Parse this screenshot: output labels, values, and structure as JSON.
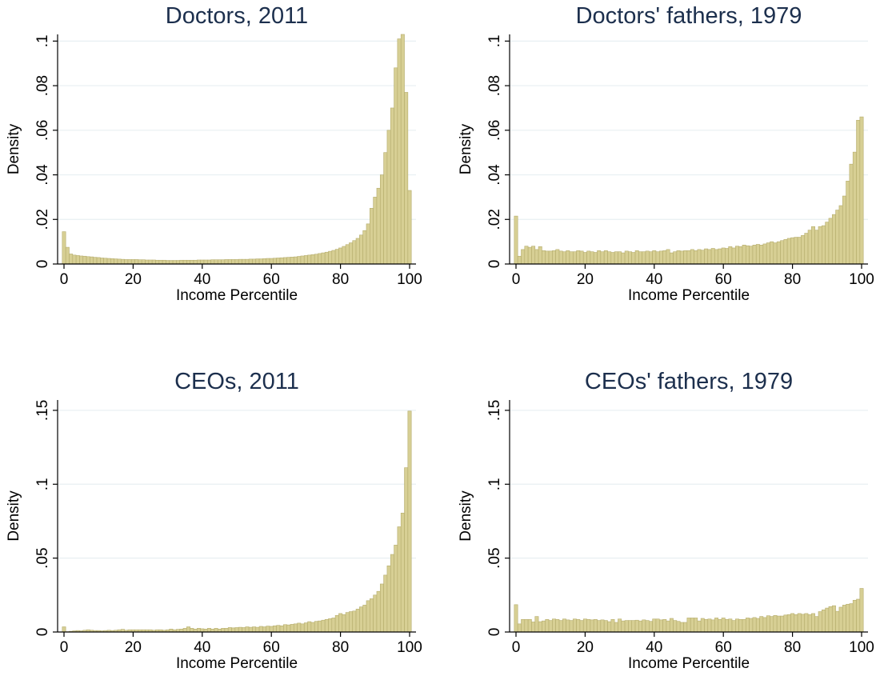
{
  "style": {
    "bar_fill": "#d7cf94",
    "bar_stroke": "#b5ac6c",
    "grid": "#e8eff2",
    "title_color": "#1c2f4d"
  },
  "chart_data": [
    {
      "type": "bar",
      "title": "Doctors, 2011",
      "xlabel": "Income Percentile",
      "ylabel": "Density",
      "xlim": [
        0,
        100
      ],
      "ylim": [
        0,
        0.103
      ],
      "xticks": [
        0,
        20,
        40,
        60,
        80,
        100
      ],
      "xtick_labels": [
        "0",
        "20",
        "40",
        "60",
        "80",
        "100"
      ],
      "yticks": [
        0,
        0.02,
        0.04,
        0.06,
        0.08,
        0.1
      ],
      "ytick_labels": [
        "0",
        ".02",
        ".04",
        ".06",
        ".08",
        ".1"
      ],
      "grid": true,
      "values": [
        0.0145,
        0.0075,
        0.0045,
        0.004,
        0.0038,
        0.0036,
        0.0035,
        0.0033,
        0.0032,
        0.003,
        0.0029,
        0.0027,
        0.0026,
        0.0025,
        0.0024,
        0.0023,
        0.0022,
        0.0021,
        0.002,
        0.002,
        0.002,
        0.002,
        0.0019,
        0.0019,
        0.0018,
        0.0018,
        0.0018,
        0.0017,
        0.0017,
        0.0017,
        0.0016,
        0.0016,
        0.0016,
        0.0016,
        0.0017,
        0.0017,
        0.0017,
        0.0017,
        0.0017,
        0.0018,
        0.0018,
        0.0018,
        0.0018,
        0.0019,
        0.0019,
        0.0019,
        0.0019,
        0.002,
        0.002,
        0.002,
        0.002,
        0.0021,
        0.0021,
        0.0021,
        0.0022,
        0.0022,
        0.0023,
        0.0023,
        0.0024,
        0.0025,
        0.0025,
        0.0026,
        0.0027,
        0.0028,
        0.0029,
        0.003,
        0.0031,
        0.0032,
        0.0034,
        0.0036,
        0.0038,
        0.004,
        0.0042,
        0.0044,
        0.0047,
        0.005,
        0.0053,
        0.0057,
        0.0061,
        0.0066,
        0.0072,
        0.0079,
        0.0087,
        0.0095,
        0.0105,
        0.0115,
        0.013,
        0.015,
        0.018,
        0.025,
        0.03,
        0.034,
        0.04,
        0.05,
        0.06,
        0.07,
        0.088,
        0.101,
        0.103,
        0.077,
        0.033
      ]
    },
    {
      "type": "bar",
      "title": "Doctors' fathers, 1979",
      "xlabel": "Income Percentile",
      "ylabel": "Density",
      "xlim": [
        0,
        100
      ],
      "ylim": [
        0,
        0.103
      ],
      "xticks": [
        0,
        20,
        40,
        60,
        80,
        100
      ],
      "xtick_labels": [
        "0",
        "20",
        "40",
        "60",
        "80",
        "100"
      ],
      "yticks": [
        0,
        0.02,
        0.04,
        0.06,
        0.08,
        0.1
      ],
      "ytick_labels": [
        "0",
        ".02",
        ".04",
        ".06",
        ".08",
        ".1"
      ],
      "grid": true,
      "values": [
        0.0215,
        0.0035,
        0.0065,
        0.008,
        0.0075,
        0.008,
        0.0065,
        0.0078,
        0.006,
        0.0058,
        0.0058,
        0.006,
        0.0065,
        0.0058,
        0.0055,
        0.006,
        0.0055,
        0.0055,
        0.006,
        0.0058,
        0.0052,
        0.0058,
        0.0055,
        0.0052,
        0.006,
        0.0055,
        0.006,
        0.0055,
        0.0052,
        0.0055,
        0.0055,
        0.005,
        0.0058,
        0.0055,
        0.0052,
        0.006,
        0.0055,
        0.0055,
        0.0058,
        0.0055,
        0.006,
        0.0055,
        0.0058,
        0.006,
        0.0065,
        0.005,
        0.0055,
        0.006,
        0.0058,
        0.006,
        0.006,
        0.0065,
        0.006,
        0.0065,
        0.0062,
        0.0068,
        0.0065,
        0.007,
        0.0065,
        0.0068,
        0.0072,
        0.007,
        0.0078,
        0.0072,
        0.008,
        0.0078,
        0.0085,
        0.0082,
        0.008,
        0.0085,
        0.0088,
        0.0085,
        0.009,
        0.0095,
        0.01,
        0.0095,
        0.01,
        0.0105,
        0.011,
        0.0115,
        0.0118,
        0.012,
        0.012,
        0.0128,
        0.0138,
        0.0152,
        0.0168,
        0.0152,
        0.0168,
        0.0172,
        0.0188,
        0.0205,
        0.0222,
        0.0242,
        0.0262,
        0.0305,
        0.0372,
        0.0448,
        0.0502,
        0.0645,
        0.066
      ]
    },
    {
      "type": "bar",
      "title": "CEOs, 2011",
      "xlabel": "Income Percentile",
      "ylabel": "Density",
      "xlim": [
        0,
        100
      ],
      "ylim": [
        0,
        0.157
      ],
      "xticks": [
        0,
        20,
        40,
        60,
        80,
        100
      ],
      "xtick_labels": [
        "0",
        "20",
        "40",
        "60",
        "80",
        "100"
      ],
      "yticks": [
        0,
        0.05,
        0.1,
        0.15
      ],
      "ytick_labels": [
        "0",
        ".05",
        ".1",
        ".15"
      ],
      "grid": true,
      "values": [
        0.0035,
        0.0002,
        0.0005,
        0.0008,
        0.001,
        0.0008,
        0.0012,
        0.0015,
        0.0012,
        0.001,
        0.001,
        0.0008,
        0.001,
        0.0012,
        0.001,
        0.0012,
        0.0015,
        0.0018,
        0.0012,
        0.0015,
        0.0015,
        0.0015,
        0.0015,
        0.0015,
        0.0015,
        0.0015,
        0.0012,
        0.0015,
        0.0015,
        0.0012,
        0.0015,
        0.002,
        0.0015,
        0.0018,
        0.002,
        0.0025,
        0.0035,
        0.0025,
        0.002,
        0.0025,
        0.0022,
        0.002,
        0.0025,
        0.002,
        0.0025,
        0.002,
        0.0025,
        0.0025,
        0.003,
        0.0028,
        0.003,
        0.0032,
        0.003,
        0.0035,
        0.0032,
        0.0035,
        0.0032,
        0.0038,
        0.0035,
        0.004,
        0.0038,
        0.0042,
        0.0045,
        0.0042,
        0.005,
        0.0048,
        0.0052,
        0.0055,
        0.006,
        0.0055,
        0.0062,
        0.007,
        0.0065,
        0.0072,
        0.0075,
        0.008,
        0.0085,
        0.009,
        0.0095,
        0.0112,
        0.0125,
        0.0118,
        0.0132,
        0.0138,
        0.0142,
        0.0155,
        0.017,
        0.0182,
        0.0212,
        0.0225,
        0.025,
        0.0275,
        0.0325,
        0.0385,
        0.0448,
        0.0525,
        0.0588,
        0.0712,
        0.0805,
        0.1112,
        0.1495
      ]
    },
    {
      "type": "bar",
      "title": "CEOs' fathers, 1979",
      "xlabel": "Income Percentile",
      "ylabel": "Density",
      "xlim": [
        0,
        100
      ],
      "ylim": [
        0,
        0.157
      ],
      "xticks": [
        0,
        20,
        40,
        60,
        80,
        100
      ],
      "xtick_labels": [
        "0",
        "20",
        "40",
        "60",
        "80",
        "100"
      ],
      "yticks": [
        0,
        0.05,
        0.1,
        0.15
      ],
      "ytick_labels": [
        "0",
        ".05",
        ".1",
        ".15"
      ],
      "grid": true,
      "values": [
        0.0185,
        0.0055,
        0.0085,
        0.0085,
        0.0085,
        0.0068,
        0.0105,
        0.007,
        0.0075,
        0.0085,
        0.0078,
        0.0088,
        0.0085,
        0.0078,
        0.0088,
        0.0082,
        0.0078,
        0.0088,
        0.0085,
        0.0078,
        0.0088,
        0.0085,
        0.0082,
        0.0085,
        0.0078,
        0.0082,
        0.0078,
        0.007,
        0.0085,
        0.0065,
        0.0088,
        0.0075,
        0.0078,
        0.0078,
        0.0078,
        0.008,
        0.0075,
        0.0082,
        0.0078,
        0.0072,
        0.0088,
        0.0088,
        0.0082,
        0.0085,
        0.0075,
        0.0092,
        0.0078,
        0.0072,
        0.0065,
        0.0065,
        0.0095,
        0.0095,
        0.0095,
        0.0075,
        0.0092,
        0.0085,
        0.0088,
        0.0082,
        0.0095,
        0.0085,
        0.0095,
        0.0085,
        0.0088,
        0.0078,
        0.0088,
        0.0085,
        0.0085,
        0.0095,
        0.0092,
        0.0098,
        0.0092,
        0.0105,
        0.0098,
        0.011,
        0.0105,
        0.0112,
        0.0108,
        0.0108,
        0.0115,
        0.0118,
        0.0125,
        0.0118,
        0.0125,
        0.012,
        0.0125,
        0.0118,
        0.0125,
        0.0105,
        0.0138,
        0.015,
        0.0162,
        0.0172,
        0.0178,
        0.014,
        0.0168,
        0.0182,
        0.0188,
        0.0192,
        0.0215,
        0.0222,
        0.0295
      ]
    }
  ]
}
